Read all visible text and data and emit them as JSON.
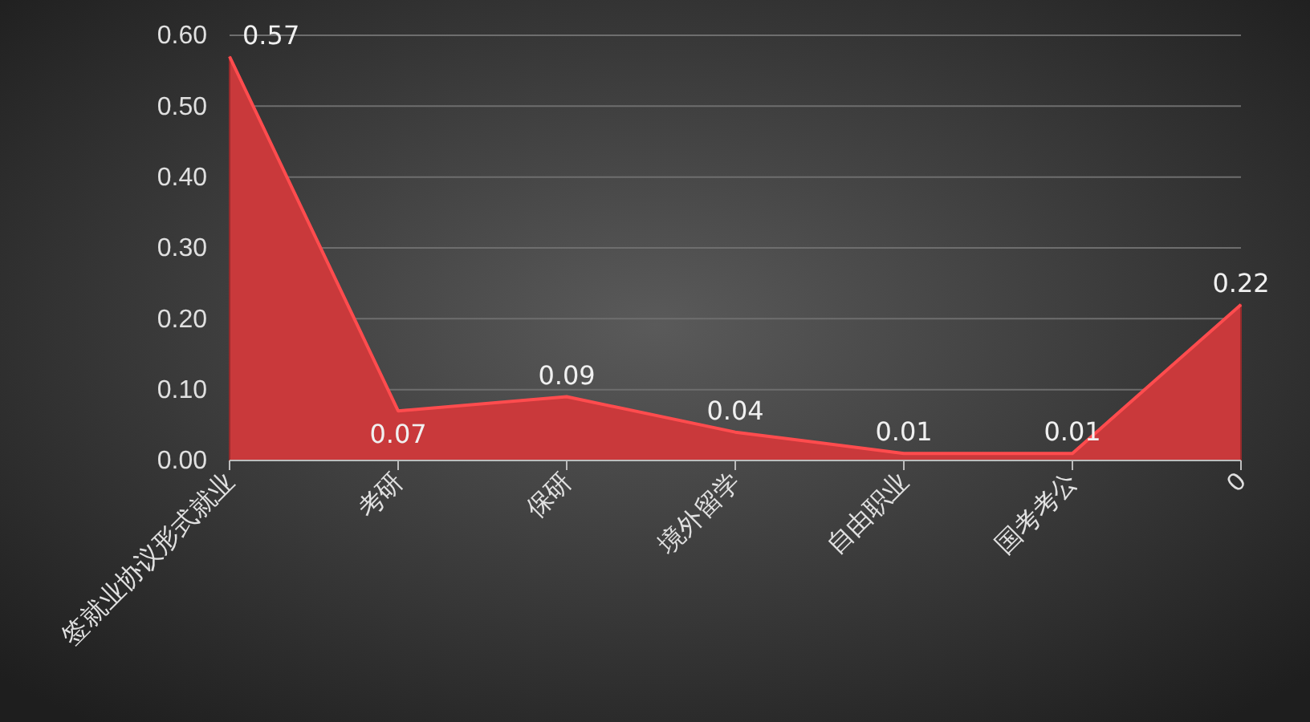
{
  "chart_data": {
    "type": "area",
    "categories": [
      "签就业协议形式就业",
      "考研",
      "保研",
      "境外留学",
      "自由职业",
      "国考考公",
      "0"
    ],
    "series": [
      {
        "color": "#c9393b",
        "values": [
          0.57,
          0.07,
          0.09,
          0.04,
          0.01,
          0.01,
          0.22
        ]
      }
    ],
    "ylim": [
      0,
      0.6
    ],
    "yticks": [
      {
        "value": 0,
        "label": "0.00"
      },
      {
        "value": 0.1,
        "label": "0.10"
      },
      {
        "value": 0.2,
        "label": "0.20"
      },
      {
        "value": 0.3,
        "label": "0.30"
      },
      {
        "value": 0.4,
        "label": "0.40"
      },
      {
        "value": 0.5,
        "label": "0.50"
      },
      {
        "value": 0.6,
        "label": "0.60"
      }
    ],
    "grid": "y",
    "data_labels": true
  }
}
